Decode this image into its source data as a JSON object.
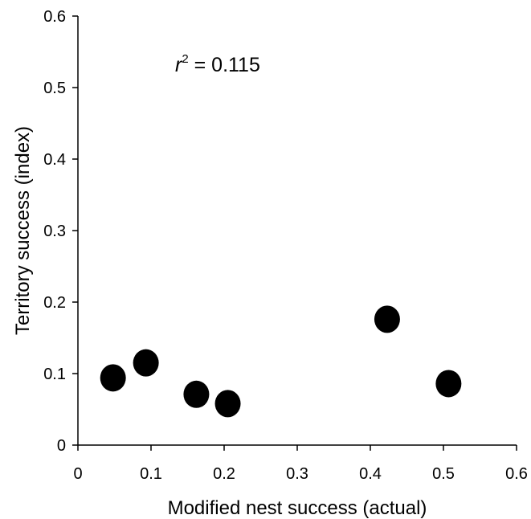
{
  "chart_data": {
    "type": "scatter",
    "title": "",
    "xlabel": "Modified nest success (actual)",
    "ylabel": "Territory success (index)",
    "xlim": [
      0,
      0.6
    ],
    "ylim": [
      0,
      0.6
    ],
    "x_ticks": [
      "0",
      "0.1",
      "0.2",
      "0.3",
      "0.4",
      "0.5",
      "0.6"
    ],
    "y_ticks": [
      "0",
      "0.1",
      "0.2",
      "0.3",
      "0.4",
      "0.5",
      "0.6"
    ],
    "grid": false,
    "legend": "none",
    "annotation": {
      "var": "r",
      "exp": "2",
      "rest": " = 0.115"
    },
    "marker_color": "#000000",
    "series": [
      {
        "points": [
          {
            "x": 0.048,
            "y": 0.094
          },
          {
            "x": 0.093,
            "y": 0.115
          },
          {
            "x": 0.162,
            "y": 0.071
          },
          {
            "x": 0.205,
            "y": 0.058
          },
          {
            "x": 0.423,
            "y": 0.176
          },
          {
            "x": 0.507,
            "y": 0.086
          }
        ]
      }
    ]
  }
}
